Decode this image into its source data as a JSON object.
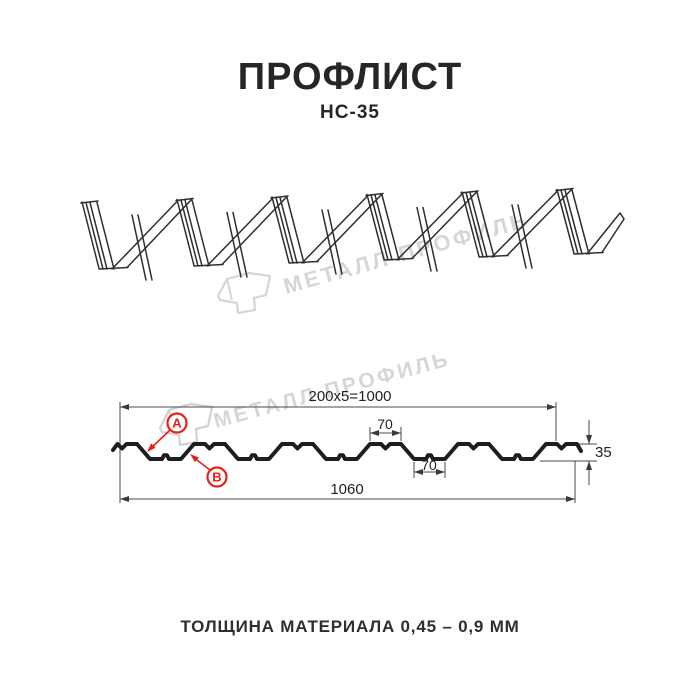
{
  "header": {
    "title": "ПРОФЛИСТ",
    "subtitle": "НС-35"
  },
  "watermark": {
    "text": "МЕТАЛЛ ПРОФИЛЬ",
    "color": "#d6d6d6",
    "logo_icon": "metal-profil-logo"
  },
  "cross_section": {
    "dim_module": "200x5=1000",
    "dim_top_flange": "70",
    "dim_bottom_flange": "70",
    "dim_total_width": "1060",
    "dim_height": "35",
    "marker_a": "A",
    "marker_b": "B",
    "accent_color": "#e32119",
    "line_color": "#1d1d1d",
    "dim_line_color": "#4a4a4a"
  },
  "footer": {
    "thickness_label": "ТОЛЩИНА МАТЕРИАЛА 0,45 – 0,9 ММ"
  }
}
